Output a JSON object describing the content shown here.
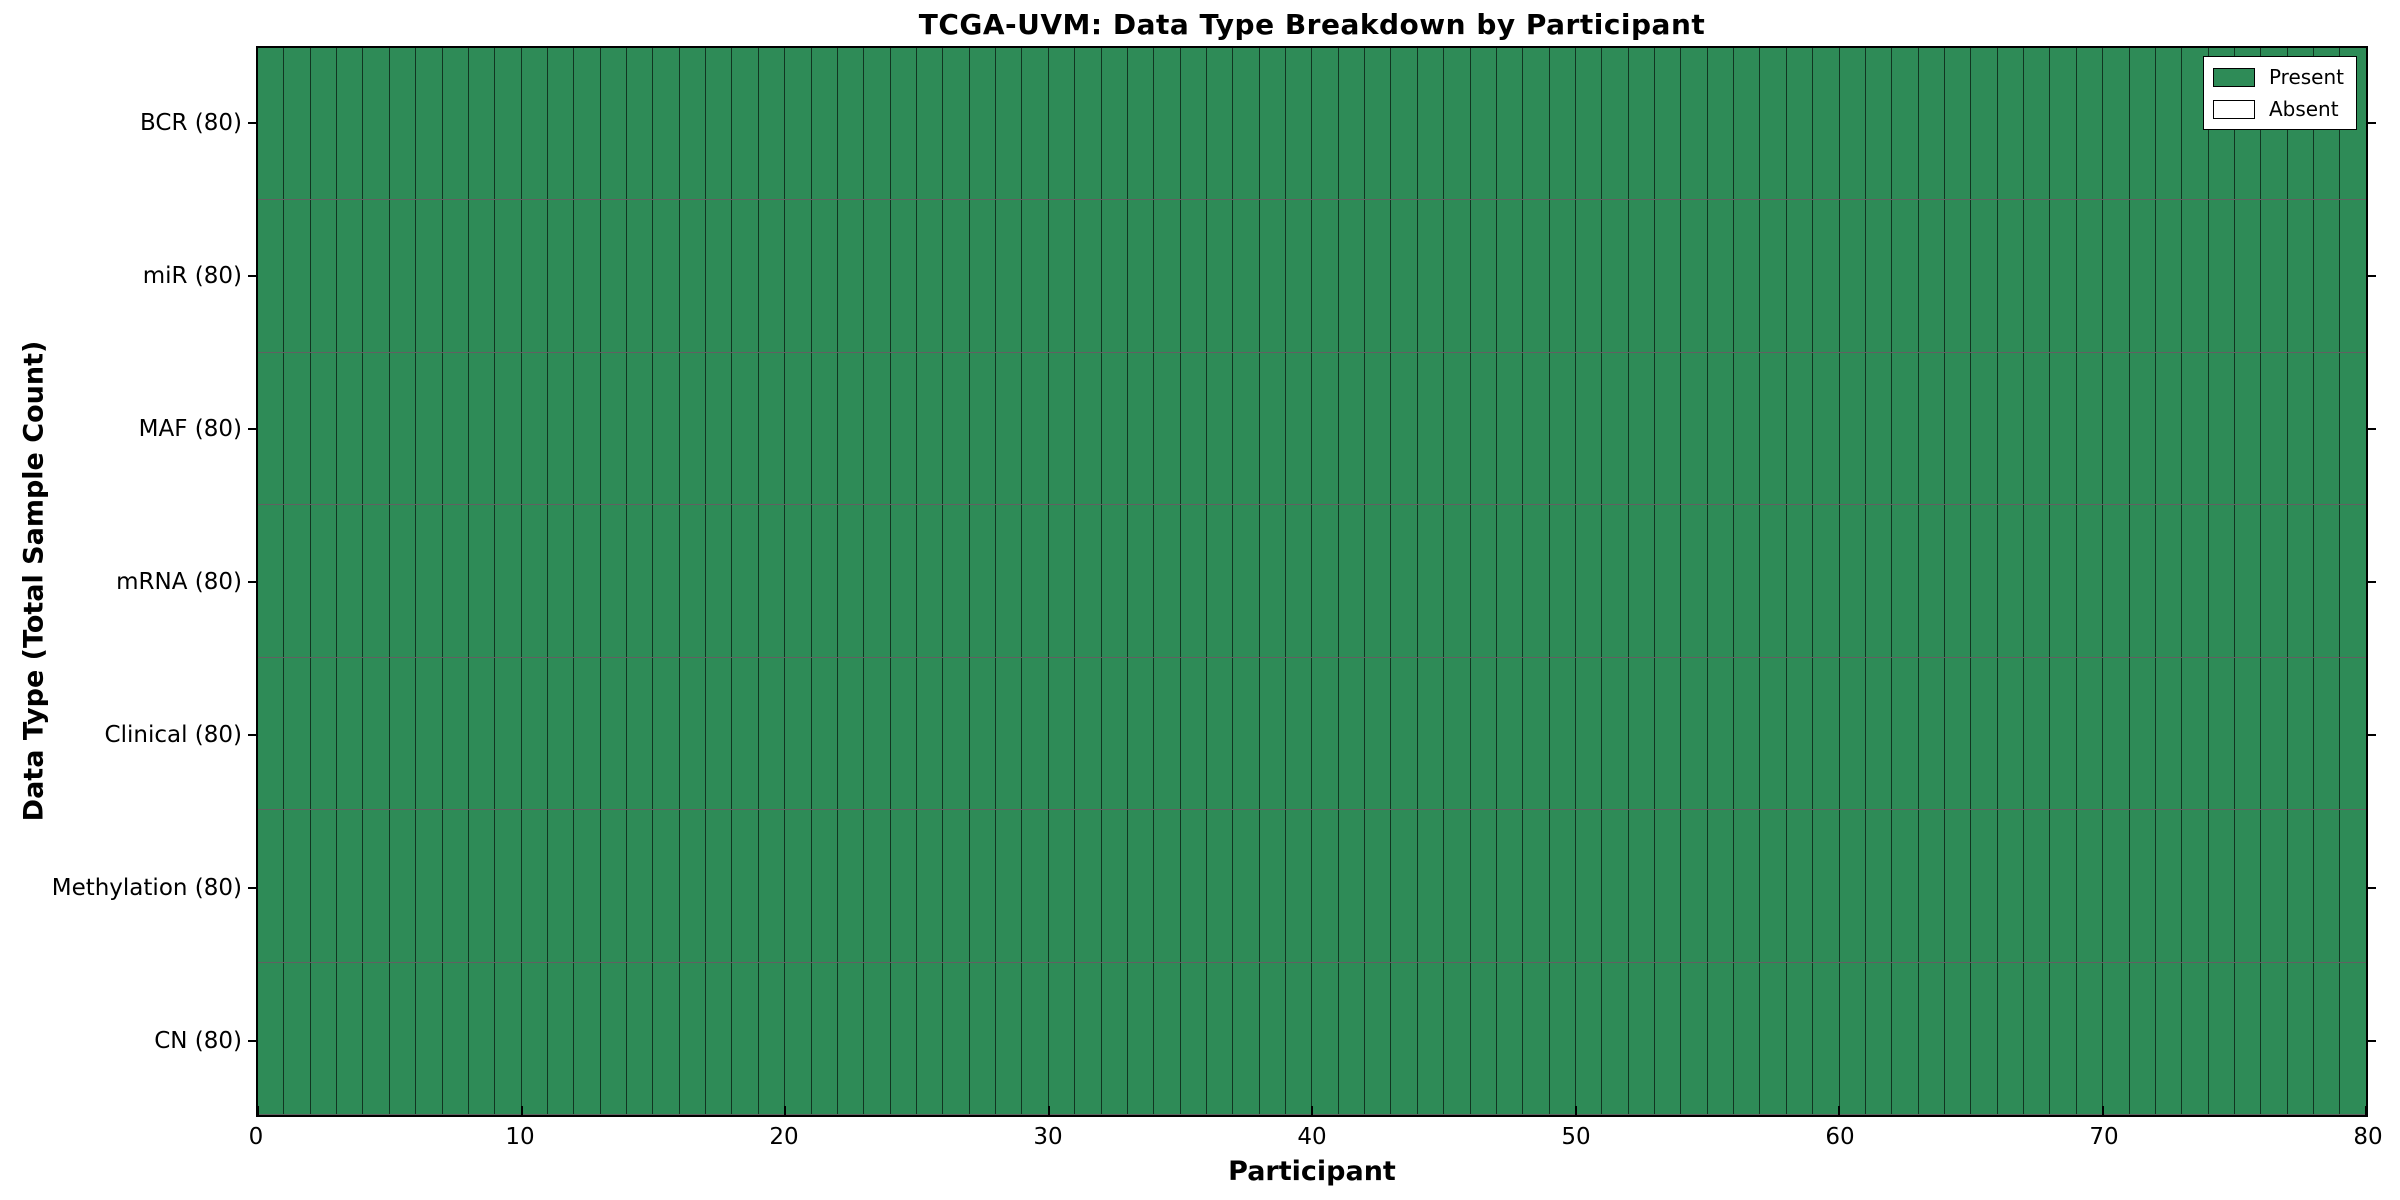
{
  "figure": {
    "title": "TCGA-UVM: Data Type Breakdown by Participant",
    "xlabel": "Participant",
    "ylabel": "Data Type (Total Sample Count)"
  },
  "legend": {
    "entries": [
      {
        "name": "present",
        "label": "Present",
        "color": "#2E8B57"
      },
      {
        "name": "absent",
        "label": "Absent",
        "color": "#FFFFFF"
      }
    ],
    "position": "upper right"
  },
  "chart_data": {
    "type": "heatmap",
    "title": "TCGA-UVM: Data Type Breakdown by Participant",
    "xlabel": "Participant",
    "ylabel": "Data Type (Total Sample Count)",
    "xlim": [
      0,
      80
    ],
    "x_ticks": [
      0,
      10,
      20,
      30,
      40,
      50,
      60,
      70,
      80
    ],
    "n_participants": 80,
    "rows": [
      {
        "label": "BCR (80)",
        "total_samples": 80,
        "present_count": 80,
        "absent_count": 0
      },
      {
        "label": "miR (80)",
        "total_samples": 80,
        "present_count": 80,
        "absent_count": 0
      },
      {
        "label": "MAF (80)",
        "total_samples": 80,
        "present_count": 80,
        "absent_count": 0
      },
      {
        "label": "mRNA (80)",
        "total_samples": 80,
        "present_count": 80,
        "absent_count": 0
      },
      {
        "label": "Clinical (80)",
        "total_samples": 80,
        "present_count": 80,
        "absent_count": 0
      },
      {
        "label": "Methylation (80)",
        "total_samples": 80,
        "present_count": 80,
        "absent_count": 0
      },
      {
        "label": "CN (80)",
        "total_samples": 80,
        "present_count": 80,
        "absent_count": 0
      }
    ],
    "colors": {
      "present": "#2E8B57",
      "absent": "#FFFFFF",
      "cell_edge": "#000000",
      "background": "#FFFFFF"
    },
    "legend_position": "upper right",
    "grid": "cell-borders"
  }
}
